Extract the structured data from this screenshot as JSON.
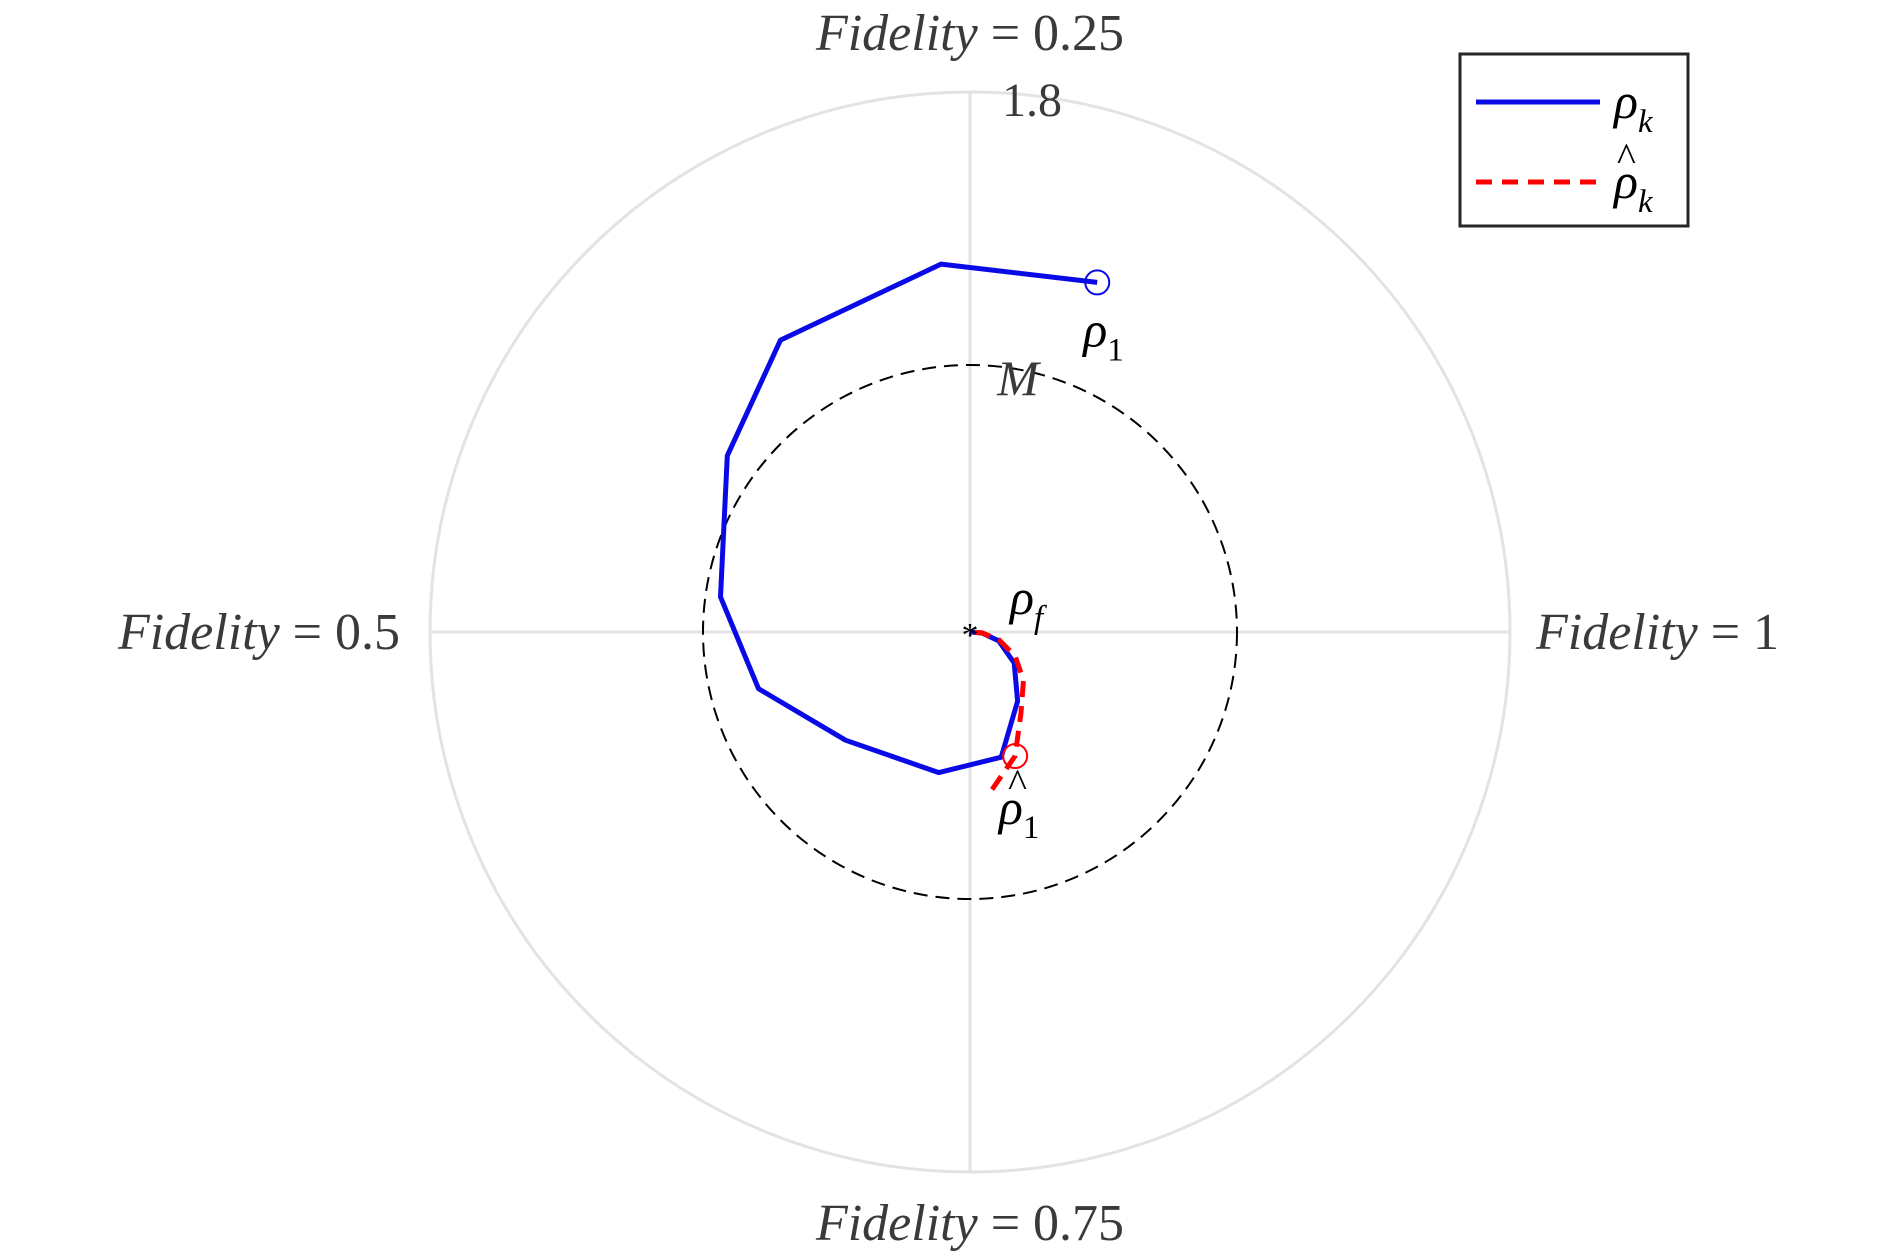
{
  "chart_data": {
    "type": "line",
    "coordinate_system": "polar",
    "radial_axis": {
      "max": 1.8,
      "tick_label": "1.8",
      "grid": true
    },
    "angular_labels": [
      {
        "angle_deg": 0,
        "italic_part": "Fidelity",
        "value_part": " = 1"
      },
      {
        "angle_deg": 90,
        "italic_part": "Fidelity",
        "value_part": " = 0.25"
      },
      {
        "angle_deg": 180,
        "italic_part": "Fidelity",
        "value_part": " = 0.5"
      },
      {
        "angle_deg": 270,
        "italic_part": "Fidelity",
        "value_part": " = 0.75"
      }
    ],
    "reference_circle": {
      "radius": 0.89,
      "label": "M",
      "color": "#000000",
      "style": "dashed"
    },
    "center_marker": {
      "label": "ρ",
      "label_sub": "f",
      "symbol": "*"
    },
    "series": [
      {
        "legend_symbol": "ρ",
        "legend_sub": "k",
        "legend_hat": false,
        "color": "#0a0ae6",
        "style": "solid",
        "start_label": "ρ",
        "start_label_sub": "1",
        "start_label_hat": false,
        "points": [
          {
            "r": 1.24,
            "theta": 70.0
          },
          {
            "r": 1.23,
            "theta": 94.5
          },
          {
            "r": 1.16,
            "theta": 123.0
          },
          {
            "r": 1.0,
            "theta": 144.0
          },
          {
            "r": 0.84,
            "theta": 172.0
          },
          {
            "r": 0.73,
            "theta": 195.0
          },
          {
            "r": 0.55,
            "theta": 221.0
          },
          {
            "r": 0.48,
            "theta": 257.5
          },
          {
            "r": 0.43,
            "theta": 284.0
          },
          {
            "r": 0.28,
            "theta": 304.5
          },
          {
            "r": 0.18,
            "theta": 325.0
          },
          {
            "r": 0.1,
            "theta": 343.0
          },
          {
            "r": 0.04,
            "theta": 355.0
          },
          {
            "r": 0.0,
            "theta": 0.0
          }
        ]
      },
      {
        "legend_symbol": "ρ",
        "legend_sub": "k",
        "legend_hat": true,
        "color": "#ff0000",
        "style": "dashed",
        "start_label": "ρ",
        "start_label_sub": "1",
        "start_label_hat": true,
        "marker_index": 1,
        "points": [
          {
            "r": 0.53,
            "theta": 278.0
          },
          {
            "r": 0.44,
            "theta": 290.0
          },
          {
            "r": 0.32,
            "theta": 302.0
          },
          {
            "r": 0.24,
            "theta": 318.0
          },
          {
            "r": 0.17,
            "theta": 332.0
          },
          {
            "r": 0.1,
            "theta": 345.0
          },
          {
            "r": 0.04,
            "theta": 356.0
          },
          {
            "r": 0.0,
            "theta": 0.0
          }
        ]
      }
    ]
  }
}
